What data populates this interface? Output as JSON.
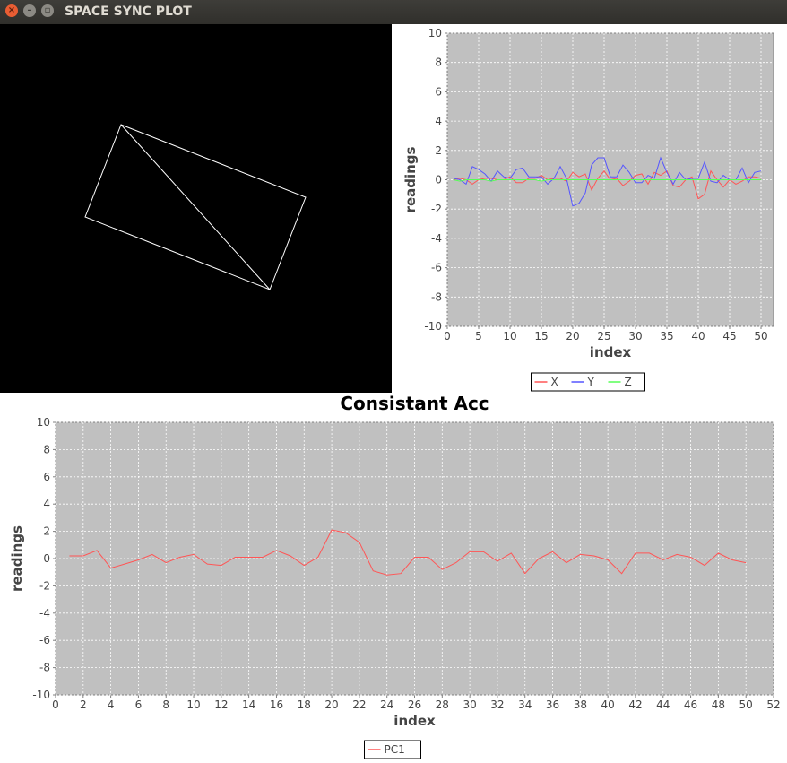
{
  "window": {
    "title": "SPACE SYNC PLOT",
    "close_icon": "close-icon",
    "minimize_icon": "minimize-icon",
    "maximize_icon": "maximize-icon"
  },
  "colors": {
    "plot_bg": "#c0c0c0",
    "grid": "#ffffff",
    "x": "#ff5555",
    "y": "#5555ff",
    "z": "#55ff55",
    "pc1": "#ff5555"
  },
  "chart_data": [
    {
      "type": "line",
      "title": "",
      "xlabel": "index",
      "ylabel": "readings",
      "xlim": [
        0,
        52
      ],
      "ylim": [
        -10,
        10
      ],
      "xticks": [
        0,
        5,
        10,
        15,
        20,
        25,
        30,
        35,
        40,
        45,
        50
      ],
      "yticks": [
        -10,
        -8,
        -6,
        -4,
        -2,
        0,
        2,
        4,
        6,
        8,
        10
      ],
      "grid": true,
      "legend": "bottom",
      "x": [
        1,
        2,
        3,
        4,
        5,
        6,
        7,
        8,
        9,
        10,
        11,
        12,
        13,
        14,
        15,
        16,
        17,
        18,
        19,
        20,
        21,
        22,
        23,
        24,
        25,
        26,
        27,
        28,
        29,
        30,
        31,
        32,
        33,
        34,
        35,
        36,
        37,
        38,
        39,
        40,
        41,
        42,
        43,
        44,
        45,
        46,
        47,
        48,
        49,
        50
      ],
      "series": [
        {
          "name": "X",
          "values": [
            0.0,
            0.1,
            0.0,
            -0.3,
            0.0,
            0.1,
            0.1,
            0.0,
            0.0,
            0.2,
            -0.2,
            -0.2,
            0.1,
            0.1,
            0.3,
            0.0,
            0.1,
            0.1,
            -0.1,
            0.5,
            0.2,
            0.4,
            -0.7,
            0.1,
            0.6,
            0.0,
            0.1,
            -0.4,
            -0.1,
            0.3,
            0.4,
            -0.3,
            0.5,
            0.3,
            0.6,
            -0.4,
            -0.5,
            0.0,
            0.2,
            -1.3,
            -1.0,
            0.6,
            0.0,
            -0.5,
            0.0,
            -0.3,
            -0.1,
            0.2,
            0.2,
            0.1
          ]
        },
        {
          "name": "Y",
          "values": [
            0.1,
            0.0,
            -0.3,
            0.9,
            0.7,
            0.4,
            -0.1,
            0.6,
            0.2,
            0.1,
            0.7,
            0.8,
            0.2,
            0.2,
            0.2,
            -0.3,
            0.1,
            0.9,
            0.1,
            -1.8,
            -1.6,
            -0.9,
            1.0,
            1.5,
            1.5,
            0.2,
            0.2,
            1.0,
            0.5,
            -0.2,
            -0.2,
            0.3,
            0.1,
            1.5,
            0.5,
            -0.3,
            0.5,
            0.0,
            0.1,
            0.1,
            1.2,
            -0.1,
            -0.2,
            0.3,
            0.0,
            0.0,
            0.8,
            -0.2,
            0.5,
            0.6
          ]
        },
        {
          "name": "Z",
          "values": [
            0.0,
            -0.1,
            0.0,
            0.0,
            0.0,
            0.0,
            -0.1,
            0.0,
            0.0,
            0.0,
            0.0,
            0.0,
            0.0,
            0.0,
            -0.1,
            0.0,
            0.0,
            0.0,
            0.0,
            0.0,
            0.0,
            0.0,
            0.0,
            0.0,
            0.0,
            0.0,
            0.0,
            0.0,
            0.0,
            0.0,
            0.0,
            0.0,
            0.0,
            0.0,
            0.0,
            0.0,
            0.0,
            0.0,
            0.0,
            0.0,
            0.0,
            0.0,
            0.0,
            0.0,
            0.0,
            0.0,
            0.0,
            0.0,
            0.0,
            0.0
          ]
        }
      ]
    },
    {
      "type": "line",
      "title": "Consistant Acc",
      "xlabel": "index",
      "ylabel": "readings",
      "xlim": [
        0,
        52
      ],
      "ylim": [
        -10,
        10
      ],
      "xticks": [
        0,
        2,
        4,
        6,
        8,
        10,
        12,
        14,
        16,
        18,
        20,
        22,
        24,
        26,
        28,
        30,
        32,
        34,
        36,
        38,
        40,
        42,
        44,
        46,
        48,
        50,
        52
      ],
      "yticks": [
        -10,
        -8,
        -6,
        -4,
        -2,
        0,
        2,
        4,
        6,
        8,
        10
      ],
      "grid": true,
      "legend": "bottom",
      "x": [
        1,
        2,
        3,
        4,
        5,
        6,
        7,
        8,
        9,
        10,
        11,
        12,
        13,
        14,
        15,
        16,
        17,
        18,
        19,
        20,
        21,
        22,
        23,
        24,
        25,
        26,
        27,
        28,
        29,
        30,
        31,
        32,
        33,
        34,
        35,
        36,
        37,
        38,
        39,
        40,
        41,
        42,
        43,
        44,
        45,
        46,
        47,
        48,
        49,
        50
      ],
      "series": [
        {
          "name": "PC1",
          "values": [
            0.2,
            0.2,
            0.6,
            -0.7,
            -0.4,
            -0.1,
            0.3,
            -0.3,
            0.1,
            0.3,
            -0.4,
            -0.5,
            0.1,
            0.1,
            0.1,
            0.6,
            0.2,
            -0.5,
            0.1,
            2.1,
            1.9,
            1.2,
            -0.9,
            -1.2,
            -1.1,
            0.1,
            0.1,
            -0.8,
            -0.3,
            0.5,
            0.5,
            -0.2,
            0.4,
            -1.1,
            0.0,
            0.5,
            -0.3,
            0.3,
            0.2,
            -0.1,
            -1.1,
            0.4,
            0.4,
            -0.1,
            0.3,
            0.1,
            -0.5,
            0.4,
            -0.1,
            -0.3
          ]
        }
      ]
    }
  ]
}
